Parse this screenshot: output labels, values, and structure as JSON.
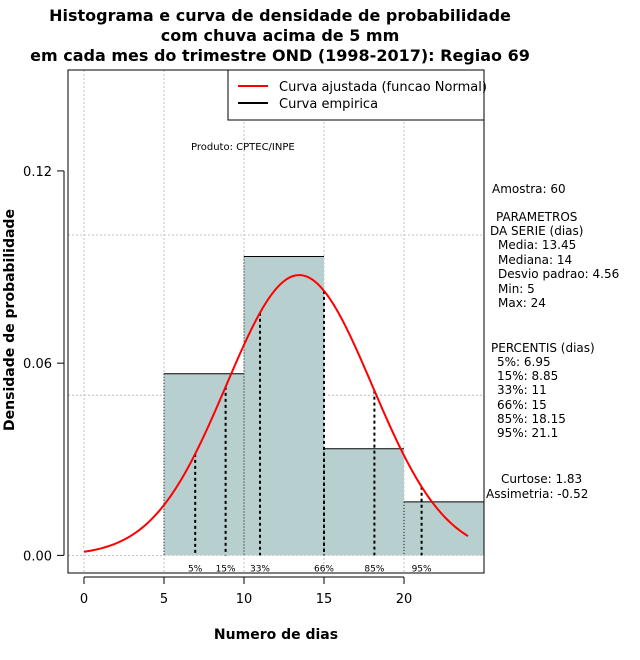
{
  "chart_data": {
    "type": "histogram",
    "title_lines": [
      "Histograma e curva de densidade de probabilidade",
      "com chuva acima de 5 mm",
      "em cada mes do trimestre OND (1998-2017): Regiao 69"
    ],
    "xlabel": "Numero de dias",
    "ylabel": "Densidade de probabilidade",
    "xlim": [
      -1,
      25
    ],
    "ylim": [
      -0.0055,
      0.1515
    ],
    "xticks": [
      0,
      5,
      10,
      15,
      20
    ],
    "yticks": [
      0.0,
      0.06,
      0.12
    ],
    "ytick_labels": [
      "0.00",
      "0.06",
      "0.12"
    ],
    "grid_x": [
      0,
      5,
      10,
      15,
      20
    ],
    "grid_y": [
      0.0,
      0.05,
      0.1
    ],
    "bins": [
      {
        "from": 5,
        "to": 10,
        "density": 0.0567
      },
      {
        "from": 10,
        "to": 15,
        "density": 0.0933
      },
      {
        "from": 15,
        "to": 20,
        "density": 0.0333
      },
      {
        "from": 20,
        "to": 25,
        "density": 0.0167
      }
    ],
    "normal_fit": {
      "mean": 13.45,
      "sd": 4.56,
      "x_from": 0,
      "x_to": 24
    },
    "percentile_lines": [
      {
        "label": "5%",
        "value": 6.95
      },
      {
        "label": "15%",
        "value": 8.85
      },
      {
        "label": "33%",
        "value": 11
      },
      {
        "label": "66%",
        "value": 15
      },
      {
        "label": "85%",
        "value": 18.15
      },
      {
        "label": "95%",
        "value": 21.1
      }
    ],
    "legend": [
      {
        "label": "Curva ajustada (funcao Normal)",
        "color": "#ff0000"
      },
      {
        "label": "Curva empirica",
        "color": "#000000"
      }
    ],
    "legend_position": "top-right",
    "colors": {
      "bar_fill": "#b8cfcf",
      "curve": "#ff0000",
      "grid": "#b3b3b3"
    }
  },
  "annotations": {
    "produto": "Produto: CPTEC/INPE",
    "amostra": "Amostra: 60",
    "parametros_title_1": "PARAMETROS",
    "parametros_title_2": "DA SERIE (dias)",
    "parametros": [
      "Media: 13.45",
      "Mediana: 14",
      "Desvio padrao: 4.56",
      "Min: 5",
      "Max: 24"
    ],
    "percentis_title": "PERCENTIS (dias)",
    "percentis": [
      "5%: 6.95",
      "15%: 8.85",
      "33%: 11",
      "66%: 15",
      "85%: 18.15",
      "95%: 21.1"
    ],
    "curtose": "Curtose: 1.83",
    "assimetria": "Assimetria: -0.52"
  }
}
